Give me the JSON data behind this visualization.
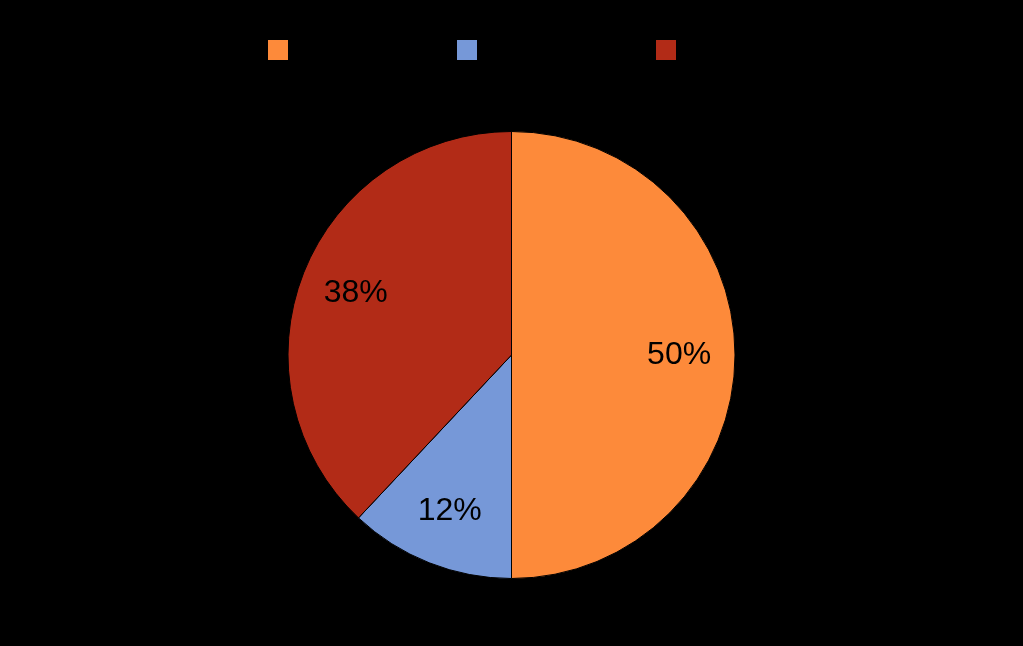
{
  "chart_data": {
    "type": "pie",
    "categories": [
      null,
      null,
      null
    ],
    "values": [
      50,
      12,
      38
    ],
    "colors": [
      "#fd8a3a",
      "#7698d8",
      "#b22b17"
    ],
    "value_labels": [
      "50%",
      "12%",
      "38%"
    ]
  }
}
